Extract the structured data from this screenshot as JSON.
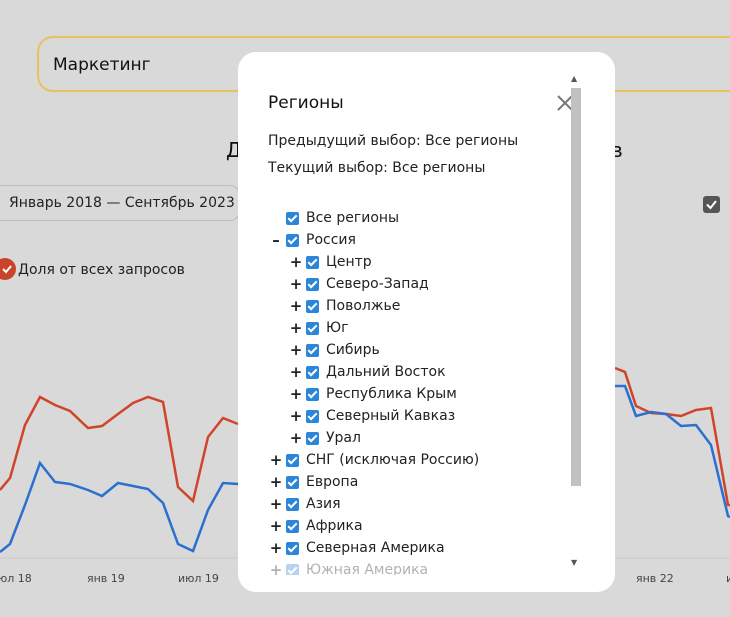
{
  "search": {
    "value": "Маркетинг"
  },
  "background": {
    "heading_left": "Д",
    "heading_right": "в",
    "period_label": "Январь 2018 — Сентябрь 2023",
    "legend_label": "Доля от всех запросов",
    "x_ticks": [
      "юл 18",
      "янв 19",
      "июл 19",
      "янв 22",
      "и"
    ],
    "colors": {
      "series_red": "#d0452a",
      "series_blue": "#2b6fd0",
      "accent": "#e8c35a"
    }
  },
  "modal": {
    "title": "Регионы",
    "prev_selection": "Предыдущий выбор: Все регионы",
    "current_selection": "Текущий выбор: Все регионы",
    "tree": [
      {
        "label": "Все регионы",
        "level": 0,
        "toggle": "",
        "checked": true
      },
      {
        "label": "Россия",
        "level": 0,
        "toggle": "–",
        "checked": true
      },
      {
        "label": "Центр",
        "level": 1,
        "toggle": "+",
        "checked": true
      },
      {
        "label": "Северо-Запад",
        "level": 1,
        "toggle": "+",
        "checked": true
      },
      {
        "label": "Поволжье",
        "level": 1,
        "toggle": "+",
        "checked": true
      },
      {
        "label": "Юг",
        "level": 1,
        "toggle": "+",
        "checked": true
      },
      {
        "label": "Сибирь",
        "level": 1,
        "toggle": "+",
        "checked": true
      },
      {
        "label": "Дальний Восток",
        "level": 1,
        "toggle": "+",
        "checked": true
      },
      {
        "label": "Республика Крым",
        "level": 1,
        "toggle": "+",
        "checked": true
      },
      {
        "label": "Северный Кавказ",
        "level": 1,
        "toggle": "+",
        "checked": true
      },
      {
        "label": "Урал",
        "level": 1,
        "toggle": "+",
        "checked": true
      },
      {
        "label": "СНГ (исключая Россию)",
        "level": 0,
        "toggle": "+",
        "checked": true
      },
      {
        "label": "Европа",
        "level": 0,
        "toggle": "+",
        "checked": true
      },
      {
        "label": "Азия",
        "level": 0,
        "toggle": "+",
        "checked": true
      },
      {
        "label": "Африка",
        "level": 0,
        "toggle": "+",
        "checked": true
      },
      {
        "label": "Северная Америка",
        "level": 0,
        "toggle": "+",
        "checked": true
      },
      {
        "label": "Южная Америка",
        "level": 0,
        "toggle": "+",
        "checked": true
      }
    ]
  }
}
